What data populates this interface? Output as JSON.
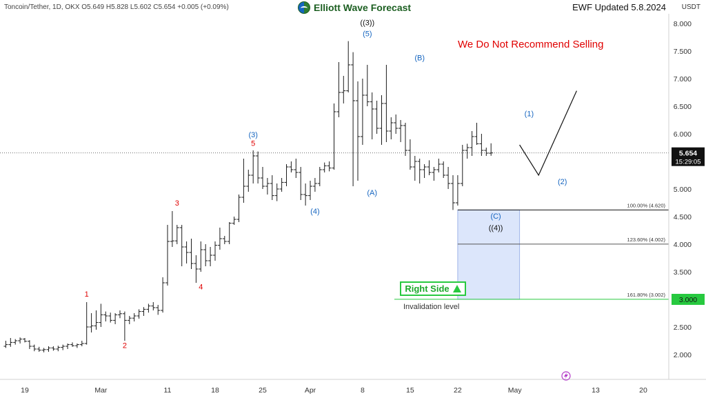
{
  "header": {
    "symbol": "Toncoin/Tether, 1D, OKX  O5.649  H5.828  L5.602  C5.654  +0.005 (+0.09%)",
    "logo_text": "Elliott Wave Forecast",
    "updated": "EWF Updated 5.8.2024",
    "currency": "USDT"
  },
  "notice": "We Do Not Recommend Selling",
  "right_side": {
    "label": "Right Side"
  },
  "invalidation": "Invalidation level",
  "colors": {
    "bull": "#1a1a1a",
    "red_label": "#e00000",
    "blue_label": "#1565c0",
    "box_fill": "#dce6fb",
    "box_stroke": "#9fb4e8",
    "green": "#27c93f",
    "price_tag": "#111111"
  },
  "chart_data": {
    "type": "ohlc",
    "ylim": [
      1.6,
      8.25
    ],
    "xlim": [
      0,
      134
    ],
    "y_ticks": [
      "2.000",
      "2.500",
      "3.000",
      "3.500",
      "4.000",
      "4.500",
      "5.000",
      "5.500",
      "6.000",
      "6.500",
      "7.000",
      "7.500",
      "8.000"
    ],
    "x_ticks": [
      {
        "t": 4,
        "label": "19"
      },
      {
        "t": 20,
        "label": "Mar"
      },
      {
        "t": 34,
        "label": "11"
      },
      {
        "t": 44,
        "label": "18"
      },
      {
        "t": 54,
        "label": "25"
      },
      {
        "t": 64,
        "label": "Apr"
      },
      {
        "t": 75,
        "label": "8"
      },
      {
        "t": 85,
        "label": "15"
      },
      {
        "t": 95,
        "label": "22"
      },
      {
        "t": 107,
        "label": "May"
      },
      {
        "t": 124,
        "label": "13"
      },
      {
        "t": 134,
        "label": "20"
      }
    ],
    "candles": [
      [
        2.15,
        2.25,
        2.12,
        2.18
      ],
      [
        2.18,
        2.3,
        2.14,
        2.22
      ],
      [
        2.22,
        2.28,
        2.18,
        2.25
      ],
      [
        2.25,
        2.31,
        2.2,
        2.28
      ],
      [
        2.28,
        2.3,
        2.22,
        2.24
      ],
      [
        2.24,
        2.26,
        2.1,
        2.15
      ],
      [
        2.15,
        2.18,
        2.06,
        2.1
      ],
      [
        2.1,
        2.14,
        2.05,
        2.08
      ],
      [
        2.08,
        2.12,
        2.04,
        2.09
      ],
      [
        2.09,
        2.15,
        2.05,
        2.12
      ],
      [
        2.12,
        2.15,
        2.07,
        2.1
      ],
      [
        2.1,
        2.16,
        2.06,
        2.13
      ],
      [
        2.13,
        2.18,
        2.08,
        2.15
      ],
      [
        2.15,
        2.2,
        2.1,
        2.18
      ],
      [
        2.18,
        2.22,
        2.14,
        2.16
      ],
      [
        2.16,
        2.2,
        2.12,
        2.18
      ],
      [
        2.18,
        2.25,
        2.15,
        2.2
      ],
      [
        2.2,
        2.95,
        2.18,
        2.5
      ],
      [
        2.5,
        2.75,
        2.4,
        2.52
      ],
      [
        2.52,
        2.8,
        2.45,
        2.58
      ],
      [
        2.58,
        2.92,
        2.5,
        2.72
      ],
      [
        2.72,
        2.78,
        2.6,
        2.7
      ],
      [
        2.7,
        2.76,
        2.58,
        2.62
      ],
      [
        2.62,
        2.75,
        2.55,
        2.72
      ],
      [
        2.72,
        2.8,
        2.66,
        2.74
      ],
      [
        2.74,
        2.78,
        2.25,
        2.62
      ],
      [
        2.62,
        2.7,
        2.55,
        2.66
      ],
      [
        2.66,
        2.75,
        2.6,
        2.7
      ],
      [
        2.7,
        2.82,
        2.65,
        2.78
      ],
      [
        2.78,
        2.86,
        2.7,
        2.82
      ],
      [
        2.82,
        2.92,
        2.76,
        2.88
      ],
      [
        2.88,
        2.95,
        2.8,
        2.85
      ],
      [
        2.85,
        2.9,
        2.72,
        2.8
      ],
      [
        2.8,
        3.4,
        2.76,
        3.3
      ],
      [
        3.3,
        4.35,
        3.25,
        4.05
      ],
      [
        4.05,
        4.6,
        3.95,
        4.06
      ],
      [
        4.06,
        4.35,
        4.0,
        4.3
      ],
      [
        4.3,
        4.35,
        3.6,
        3.95
      ],
      [
        3.95,
        4.05,
        3.65,
        3.85
      ],
      [
        3.85,
        4.1,
        3.55,
        3.65
      ],
      [
        3.65,
        3.8,
        3.3,
        3.55
      ],
      [
        3.55,
        4.05,
        3.5,
        3.9
      ],
      [
        3.9,
        4.0,
        3.6,
        3.7
      ],
      [
        3.7,
        3.95,
        3.6,
        3.8
      ],
      [
        3.8,
        4.05,
        3.7,
        3.98
      ],
      [
        3.98,
        4.3,
        3.9,
        4.1
      ],
      [
        4.1,
        4.15,
        4.0,
        4.05
      ],
      [
        4.05,
        4.4,
        4.0,
        4.38
      ],
      [
        4.38,
        4.5,
        4.35,
        4.45
      ],
      [
        4.45,
        4.9,
        4.4,
        4.85
      ],
      [
        4.85,
        5.55,
        4.75,
        5.05
      ],
      [
        5.05,
        5.35,
        4.95,
        5.25
      ],
      [
        5.25,
        5.7,
        5.1,
        5.6
      ],
      [
        5.6,
        5.68,
        5.1,
        5.2
      ],
      [
        5.2,
        5.4,
        5.0,
        5.05
      ],
      [
        5.05,
        5.2,
        4.9,
        5.1
      ],
      [
        5.1,
        5.25,
        4.8,
        4.88
      ],
      [
        4.88,
        5.1,
        4.78,
        5.0
      ],
      [
        5.0,
        5.2,
        4.95,
        5.12
      ],
      [
        5.12,
        5.45,
        5.05,
        5.4
      ],
      [
        5.4,
        5.5,
        5.3,
        5.35
      ],
      [
        5.35,
        5.55,
        5.2,
        5.3
      ],
      [
        5.3,
        5.4,
        4.8,
        4.9
      ],
      [
        4.9,
        5.1,
        4.7,
        4.88
      ],
      [
        4.88,
        5.15,
        4.8,
        5.05
      ],
      [
        5.05,
        5.2,
        4.95,
        5.1
      ],
      [
        5.1,
        5.4,
        5.05,
        5.35
      ],
      [
        5.35,
        5.48,
        5.3,
        5.42
      ],
      [
        5.42,
        5.5,
        5.32,
        5.38
      ],
      [
        5.38,
        6.55,
        5.35,
        6.4
      ],
      [
        6.4,
        7.3,
        6.3,
        6.75
      ],
      [
        6.75,
        7.05,
        6.55,
        6.78
      ],
      [
        6.78,
        7.68,
        6.75,
        7.25
      ],
      [
        7.25,
        7.48,
        5.05,
        6.6
      ],
      [
        6.6,
        6.95,
        5.15,
        5.95
      ],
      [
        5.95,
        7.0,
        5.8,
        6.7
      ],
      [
        6.7,
        7.25,
        6.5,
        6.58
      ],
      [
        6.58,
        6.75,
        5.9,
        6.45
      ],
      [
        6.45,
        6.6,
        6.0,
        6.1
      ],
      [
        6.1,
        6.7,
        5.8,
        6.55
      ],
      [
        6.55,
        7.25,
        5.85,
        6.05
      ],
      [
        6.05,
        6.3,
        5.9,
        6.2
      ],
      [
        6.2,
        6.35,
        6.0,
        6.1
      ],
      [
        6.1,
        6.25,
        5.85,
        6.15
      ],
      [
        6.15,
        6.2,
        5.6,
        5.7
      ],
      [
        5.7,
        5.9,
        5.35,
        5.4
      ],
      [
        5.4,
        5.6,
        5.15,
        5.5
      ],
      [
        5.5,
        5.55,
        5.1,
        5.35
      ],
      [
        5.35,
        5.45,
        5.2,
        5.4
      ],
      [
        5.4,
        5.52,
        5.25,
        5.3
      ],
      [
        5.3,
        5.4,
        5.15,
        5.35
      ],
      [
        5.35,
        5.55,
        5.3,
        5.45
      ],
      [
        5.45,
        5.5,
        5.2,
        5.25
      ],
      [
        5.25,
        5.4,
        5.0,
        5.1
      ],
      [
        5.1,
        5.25,
        4.62,
        4.75
      ],
      [
        4.75,
        5.25,
        4.7,
        5.1
      ],
      [
        5.1,
        5.8,
        5.05,
        5.7
      ],
      [
        5.7,
        5.82,
        5.55,
        5.75
      ],
      [
        5.75,
        6.05,
        5.6,
        5.95
      ],
      [
        5.95,
        6.2,
        5.8,
        5.82
      ],
      [
        5.82,
        6.0,
        5.6,
        5.7
      ],
      [
        5.7,
        5.75,
        5.6,
        5.65
      ],
      [
        5.649,
        5.828,
        5.602,
        5.654
      ]
    ],
    "projection": [
      [
        108,
        5.8
      ],
      [
        112,
        5.25
      ],
      [
        120,
        6.78
      ]
    ],
    "current_price": {
      "value": 5.654,
      "label": "5.654",
      "countdown": "15:29:05"
    },
    "fib_box": {
      "t0": 95,
      "t1": 108,
      "y_top": 4.62,
      "y_bottom": 3.0
    },
    "fib_levels": [
      {
        "value": 4.62,
        "label": "100.00% (4.620)",
        "color": "#111111"
      },
      {
        "value": 4.002,
        "label": "123.60% (4.002)",
        "color": "#555555"
      },
      {
        "value": 3.002,
        "label": "161.80% (3.002)",
        "color": "#27c93f"
      }
    ],
    "invalidation_value": {
      "value": 3.0,
      "label": "3.000"
    },
    "annotations": [
      {
        "t": 17,
        "y": 3.05,
        "text": "1",
        "color": "red"
      },
      {
        "t": 25,
        "y": 2.12,
        "text": "2",
        "color": "red"
      },
      {
        "t": 36,
        "y": 4.7,
        "text": "3",
        "color": "red"
      },
      {
        "t": 41,
        "y": 3.18,
        "text": "4",
        "color": "red"
      },
      {
        "t": 52,
        "y": 5.78,
        "text": "5",
        "color": "red"
      },
      {
        "t": 52,
        "y": 5.94,
        "text": "(3)",
        "color": "blue"
      },
      {
        "t": 65,
        "y": 4.55,
        "text": "(4)",
        "color": "blue"
      },
      {
        "t": 76,
        "y": 7.77,
        "text": "(5)",
        "color": "blue"
      },
      {
        "t": 76,
        "y": 7.97,
        "text": "((3))",
        "color": "black"
      },
      {
        "t": 77,
        "y": 4.89,
        "text": "(A)",
        "color": "blue"
      },
      {
        "t": 87,
        "y": 7.33,
        "text": "(B)",
        "color": "blue"
      },
      {
        "t": 103,
        "y": 4.46,
        "text": "(C)",
        "color": "blue"
      },
      {
        "t": 103,
        "y": 4.25,
        "text": "((4))",
        "color": "black"
      },
      {
        "t": 110,
        "y": 6.32,
        "text": "(1)",
        "color": "blue"
      },
      {
        "t": 117,
        "y": 5.09,
        "text": "(2)",
        "color": "blue"
      }
    ]
  }
}
